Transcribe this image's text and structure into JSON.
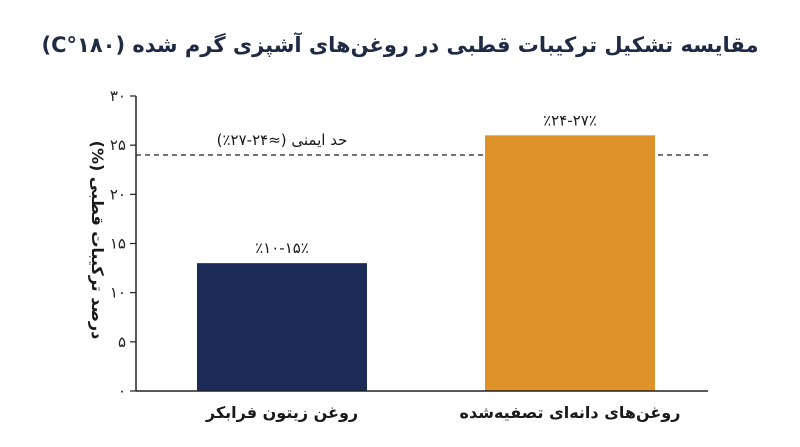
{
  "chart_data": {
    "type": "bar",
    "title": "مقایسه تشکیل ترکیبات قطبی در روغن‌های آشپزی گرم شده (۱۸۰°C)",
    "ylabel": "درصد ترکیبات قطبی (%)",
    "xlabel": "",
    "ylim": [
      0,
      30
    ],
    "yticks": [
      0,
      5,
      10,
      15,
      20,
      25,
      30
    ],
    "ytick_labels": [
      "۰",
      "۵",
      "۱۰",
      "۱۵",
      "۲۰",
      "۲۵",
      "۳۰"
    ],
    "categories": [
      "روغن زیتون فرابکر",
      "روغن‌های دانه‌ای تصفیه‌شده"
    ],
    "values": [
      13,
      26
    ],
    "data_labels": [
      "٪۱۰-۱۵٪",
      "٪۲۴-۲۷٪"
    ],
    "colors": [
      "#1b2a56",
      "#e0922a"
    ],
    "reference_line": {
      "value": 24,
      "label": "حد ایمنی (≈۲۴-۲۷٪)",
      "style": "dashed"
    },
    "grid": false,
    "legend": "none"
  }
}
